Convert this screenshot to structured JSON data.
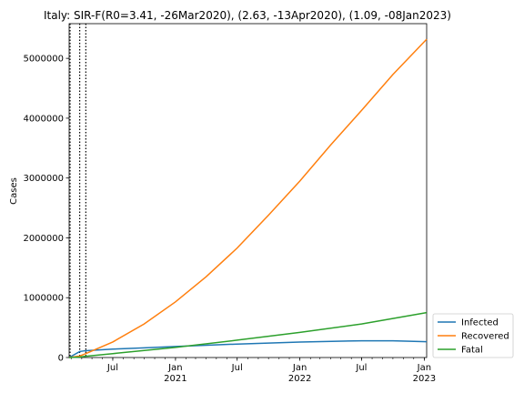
{
  "chart_data": {
    "type": "line",
    "title": "Italy: SIR-F(R0=3.41, -26Mar2020), (2.63, -13Apr2020), (1.09, -08Jan2023)",
    "xlabel": "",
    "ylabel": "Cases",
    "xlim": [
      "2020-02-24",
      "2023-01-08"
    ],
    "ylim": [
      0,
      5580000
    ],
    "y_ticks": [
      0,
      1000000,
      2000000,
      3000000,
      4000000,
      5000000
    ],
    "y_tick_labels": [
      "0",
      "1000000",
      "2000000",
      "3000000",
      "4000000",
      "5000000"
    ],
    "x_ticks": [
      {
        "date": "2020-07-01",
        "label": "Jul",
        "year": ""
      },
      {
        "date": "2021-01-01",
        "label": "Jan",
        "year": "2021"
      },
      {
        "date": "2021-07-01",
        "label": "Jul",
        "year": ""
      },
      {
        "date": "2022-01-01",
        "label": "Jan",
        "year": "2022"
      },
      {
        "date": "2022-07-01",
        "label": "Jul",
        "year": ""
      },
      {
        "date": "2023-01-01",
        "label": "Jan",
        "year": "2023"
      }
    ],
    "change_dates": [
      "2020-02-24",
      "2020-03-26",
      "2020-04-13"
    ],
    "grid": false,
    "legend": "outside-lower-right",
    "series": [
      {
        "name": "Infected",
        "color": "#1f77b4",
        "points": [
          [
            "2020-02-24",
            0
          ],
          [
            "2020-03-26",
            100000
          ],
          [
            "2020-04-13",
            115000
          ],
          [
            "2020-07-01",
            140000
          ],
          [
            "2020-10-01",
            162000
          ],
          [
            "2021-01-01",
            185000
          ],
          [
            "2021-07-01",
            225000
          ],
          [
            "2022-01-01",
            258000
          ],
          [
            "2022-07-01",
            280000
          ],
          [
            "2022-10-01",
            280000
          ],
          [
            "2023-01-08",
            265000
          ]
        ]
      },
      {
        "name": "Recovered",
        "color": "#ff7f0e",
        "points": [
          [
            "2020-02-24",
            0
          ],
          [
            "2020-03-26",
            25000
          ],
          [
            "2020-04-13",
            65000
          ],
          [
            "2020-07-01",
            260000
          ],
          [
            "2020-10-01",
            560000
          ],
          [
            "2021-01-01",
            930000
          ],
          [
            "2021-04-01",
            1350000
          ],
          [
            "2021-07-01",
            1830000
          ],
          [
            "2021-10-01",
            2380000
          ],
          [
            "2022-01-01",
            2950000
          ],
          [
            "2022-04-01",
            3550000
          ],
          [
            "2022-07-01",
            4130000
          ],
          [
            "2022-10-01",
            4730000
          ],
          [
            "2023-01-08",
            5320000
          ]
        ]
      },
      {
        "name": "Fatal",
        "color": "#2ca02c",
        "points": [
          [
            "2020-02-24",
            0
          ],
          [
            "2020-03-26",
            8000
          ],
          [
            "2020-04-13",
            20000
          ],
          [
            "2020-07-01",
            65000
          ],
          [
            "2021-01-01",
            170000
          ],
          [
            "2021-07-01",
            290000
          ],
          [
            "2022-01-01",
            420000
          ],
          [
            "2022-07-01",
            560000
          ],
          [
            "2023-01-08",
            750000
          ]
        ]
      }
    ]
  }
}
